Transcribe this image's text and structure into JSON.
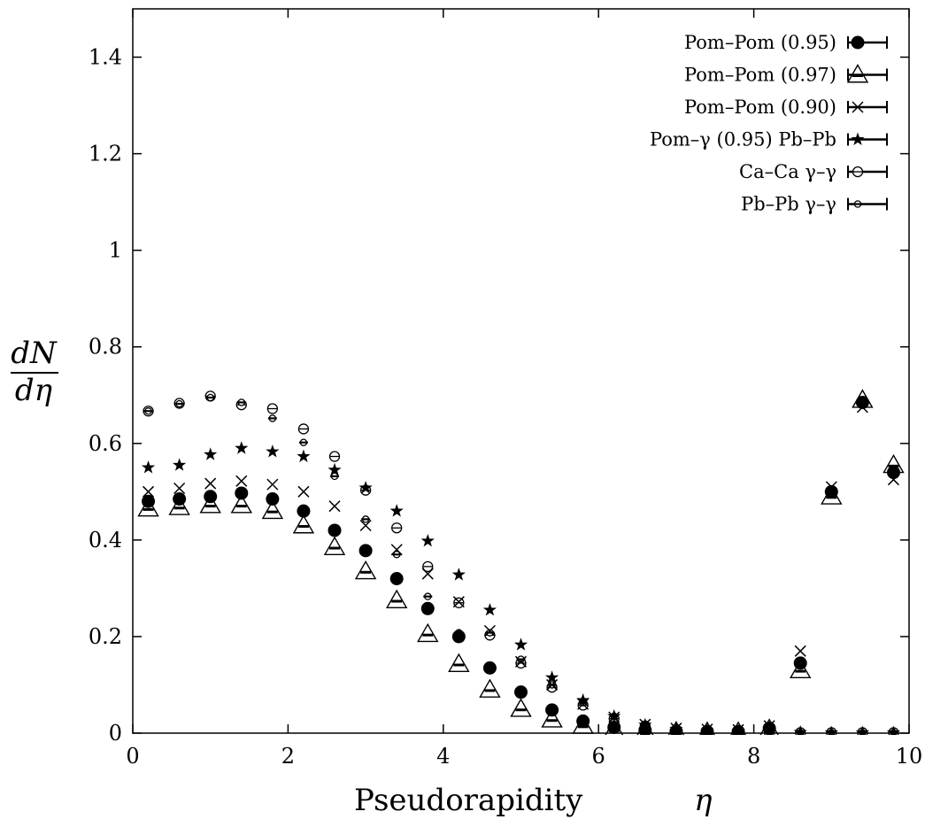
{
  "chart_data": {
    "type": "scatter",
    "xlabel": "Pseudorapidity",
    "xlabel_symbol": "η",
    "ylabel_num": "dN",
    "ylabel_den": "dη",
    "xlim": [
      0,
      10
    ],
    "ylim": [
      0,
      1.5
    ],
    "x_ticks": [
      0,
      2,
      4,
      6,
      8,
      10
    ],
    "y_ticks": [
      0,
      0.2,
      0.4,
      0.6,
      0.8,
      1,
      1.2,
      1.4
    ],
    "x_tick_labels": [
      "0",
      "2",
      "4",
      "6",
      "8",
      "10"
    ],
    "y_tick_labels": [
      "0",
      "0.2",
      "0.4",
      "0.6",
      "0.8",
      "1",
      "1.2",
      "1.4"
    ],
    "grid": false,
    "legend_position": "top-right",
    "x": [
      0.2,
      0.6,
      1.0,
      1.4,
      1.8,
      2.2,
      2.6,
      3.0,
      3.4,
      3.8,
      4.2,
      4.6,
      5.0,
      5.4,
      5.8,
      6.2,
      6.6,
      7.0,
      7.4,
      7.8,
      8.2,
      8.6,
      9.0,
      9.4,
      9.8
    ],
    "series": [
      {
        "name": "Pom–Pom (0.95)",
        "marker": "filled-circle",
        "values": [
          0.48,
          0.485,
          0.49,
          0.497,
          0.485,
          0.46,
          0.42,
          0.378,
          0.32,
          0.258,
          0.2,
          0.135,
          0.085,
          0.048,
          0.025,
          0.012,
          0.006,
          0.004,
          0.003,
          0.003,
          0.01,
          0.145,
          0.5,
          0.685,
          0.54
        ]
      },
      {
        "name": "Pom–Pom (0.97)",
        "marker": "open-triangle",
        "values": [
          0.465,
          0.468,
          0.472,
          0.472,
          0.46,
          0.43,
          0.385,
          0.335,
          0.275,
          0.205,
          0.143,
          0.09,
          0.05,
          0.028,
          0.015,
          0.007,
          0.004,
          0.003,
          0.002,
          0.002,
          0.008,
          0.13,
          0.49,
          0.69,
          0.555
        ]
      },
      {
        "name": "Pom–Pom (0.90)",
        "marker": "cross",
        "values": [
          0.5,
          0.507,
          0.517,
          0.522,
          0.515,
          0.5,
          0.47,
          0.43,
          0.38,
          0.33,
          0.272,
          0.212,
          0.148,
          0.1,
          0.06,
          0.033,
          0.018,
          0.01,
          0.008,
          0.007,
          0.015,
          0.17,
          0.51,
          0.675,
          0.525
        ]
      },
      {
        "name": "Pom–γ (0.95) Pb–Pb",
        "marker": "star",
        "values": [
          0.55,
          0.555,
          0.577,
          0.59,
          0.583,
          0.573,
          0.545,
          0.508,
          0.46,
          0.398,
          0.328,
          0.255,
          0.183,
          0.115,
          0.068,
          0.035,
          0.017,
          0.008,
          0.005,
          0.004,
          0.003,
          0.002,
          0.001,
          0.001,
          0.001
        ]
      },
      {
        "name": "Ca–Ca γ–γ",
        "marker": "open-circle",
        "values": [
          0.667,
          0.683,
          0.698,
          0.68,
          0.672,
          0.63,
          0.573,
          0.503,
          0.425,
          0.345,
          0.27,
          0.203,
          0.145,
          0.095,
          0.058,
          0.03,
          0.015,
          0.007,
          0.004,
          0.002,
          0.001,
          0.001,
          0.001,
          0.001,
          0.001
        ]
      },
      {
        "name": "Pb–Pb γ–γ",
        "marker": "small-circle",
        "values": [
          0.667,
          0.682,
          0.695,
          0.685,
          0.652,
          0.602,
          0.532,
          0.443,
          0.37,
          0.283,
          0.208,
          0.208,
          0.153,
          0.1,
          0.063,
          0.035,
          0.018,
          0.008,
          0.004,
          0.002,
          0.001,
          0.001,
          0.001,
          0.001,
          0.001
        ]
      }
    ]
  }
}
